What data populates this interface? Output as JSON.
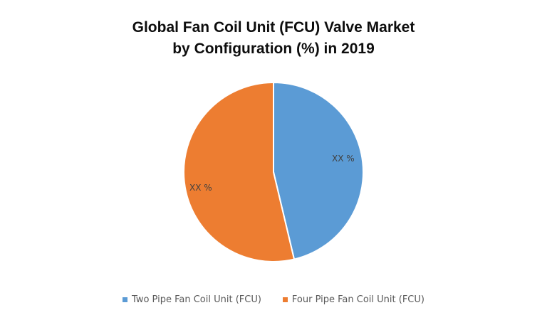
{
  "title": {
    "line1": "Global Fan Coil Unit (FCU) Valve Market",
    "line2": "by Configuration (%) in 2019"
  },
  "colors": {
    "two_pipe": "#5B9BD5",
    "four_pipe": "#ED7D31"
  },
  "slices": [
    {
      "label": "XX %"
    },
    {
      "label": "XX %"
    }
  ],
  "legend": [
    {
      "label": "Two Pipe Fan Coil Unit (FCU)"
    },
    {
      "label": "Four Pipe Fan Coil Unit (FCU)"
    }
  ],
  "chart_data": {
    "type": "pie",
    "title": "Global Fan Coil Unit (FCU) Valve Market by Configuration (%) in 2019",
    "categories": [
      "Two Pipe Fan Coil Unit (FCU)",
      "Four Pipe Fan Coil Unit (FCU)"
    ],
    "values": [
      46.3,
      53.7
    ],
    "values_note": "estimated from slice geometry; the chart's on-image labels read only 'XX %'",
    "data_labels": [
      "XX %",
      "XX %"
    ],
    "colors": [
      "#5B9BD5",
      "#ED7D31"
    ],
    "start_angle": "12 o'clock, clockwise",
    "legend_position": "bottom"
  }
}
